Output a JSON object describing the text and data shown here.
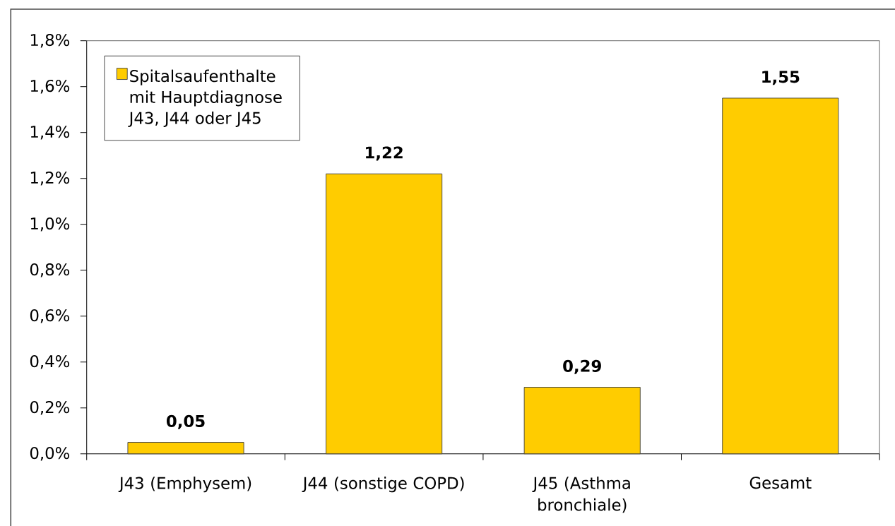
{
  "chart_data": {
    "type": "bar",
    "categories": [
      "J43 (Emphysem)",
      "J44 (sonstige COPD)",
      "J45 (Asthma bronchiale)",
      "Gesamt"
    ],
    "series": [
      {
        "name": "Spitalsaufenthalte mit Hauptdiagnose J43, J44 oder J45",
        "color": "#ffcc00",
        "values": [
          0.05,
          1.22,
          0.29,
          1.55
        ],
        "value_labels": [
          "0,05",
          "1,22",
          "0,29",
          "1,55"
        ]
      }
    ],
    "ylim": [
      0,
      1.8
    ],
    "yticks": [
      {
        "value": 0,
        "label": "0,0%"
      },
      {
        "value": 0.2,
        "label": "0,2%"
      },
      {
        "value": 0.4,
        "label": "0,4%"
      },
      {
        "value": 0.6,
        "label": "0,6%"
      },
      {
        "value": 0.8,
        "label": "0,8%"
      },
      {
        "value": 1.0,
        "label": "1,0%"
      },
      {
        "value": 1.2,
        "label": "1,2%"
      },
      {
        "value": 1.4,
        "label": "1,4%"
      },
      {
        "value": 1.6,
        "label": "1,6%"
      },
      {
        "value": 1.8,
        "label": "1,8%"
      }
    ],
    "legend": "top left"
  }
}
